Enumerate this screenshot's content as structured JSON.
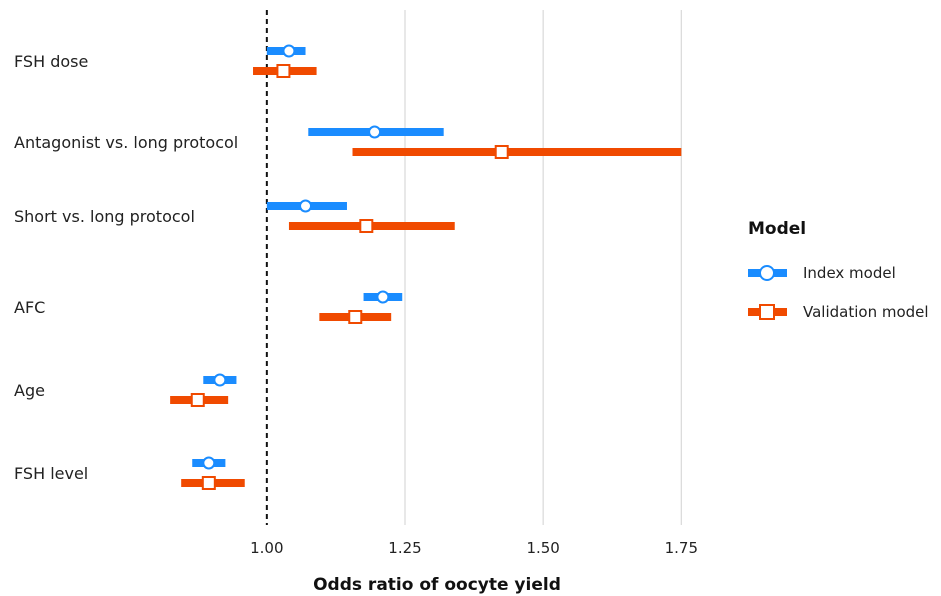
{
  "chart_data": {
    "type": "forest",
    "xlabel": "Odds ratio of oocyte yield",
    "xlim": [
      0.87,
      1.82
    ],
    "xticks": [
      1.0,
      1.25,
      1.5,
      1.75
    ],
    "xtick_labels": [
      "1.00",
      "1.25",
      "1.50",
      "1.75"
    ],
    "reference_line": 1.0,
    "grid": "vertical",
    "legend_title": "Model",
    "legend_position": "right",
    "categories": [
      "FSH dose",
      "Antagonist vs. long protocol",
      "Short vs. long protocol",
      "AFC",
      "Age",
      "FSH level"
    ],
    "series": [
      {
        "name": "Index model",
        "color": "#1a8cff",
        "marker": "circle",
        "points": [
          {
            "category": "FSH dose",
            "estimate": 1.04,
            "lower": 1.0,
            "upper": 1.07
          },
          {
            "category": "Antagonist vs. long protocol",
            "estimate": 1.195,
            "lower": 1.075,
            "upper": 1.32
          },
          {
            "category": "Short vs. long protocol",
            "estimate": 1.07,
            "lower": 1.0,
            "upper": 1.145
          },
          {
            "category": "AFC",
            "estimate": 1.21,
            "lower": 1.175,
            "upper": 1.245
          },
          {
            "category": "Age",
            "estimate": 0.915,
            "lower": 0.885,
            "upper": 0.945
          },
          {
            "category": "FSH level",
            "estimate": 0.895,
            "lower": 0.865,
            "upper": 0.925
          }
        ]
      },
      {
        "name": "Validation model",
        "color": "#f04a00",
        "marker": "square",
        "points": [
          {
            "category": "FSH dose",
            "estimate": 1.03,
            "lower": 0.975,
            "upper": 1.09
          },
          {
            "category": "Antagonist vs. long protocol",
            "estimate": 1.425,
            "lower": 1.155,
            "upper": 1.75
          },
          {
            "category": "Short vs. long protocol",
            "estimate": 1.18,
            "lower": 1.04,
            "upper": 1.34
          },
          {
            "category": "AFC",
            "estimate": 1.16,
            "lower": 1.095,
            "upper": 1.225
          },
          {
            "category": "Age",
            "estimate": 0.875,
            "lower": 0.825,
            "upper": 0.93
          },
          {
            "category": "FSH level",
            "estimate": 0.895,
            "lower": 0.845,
            "upper": 0.96
          }
        ]
      }
    ]
  }
}
